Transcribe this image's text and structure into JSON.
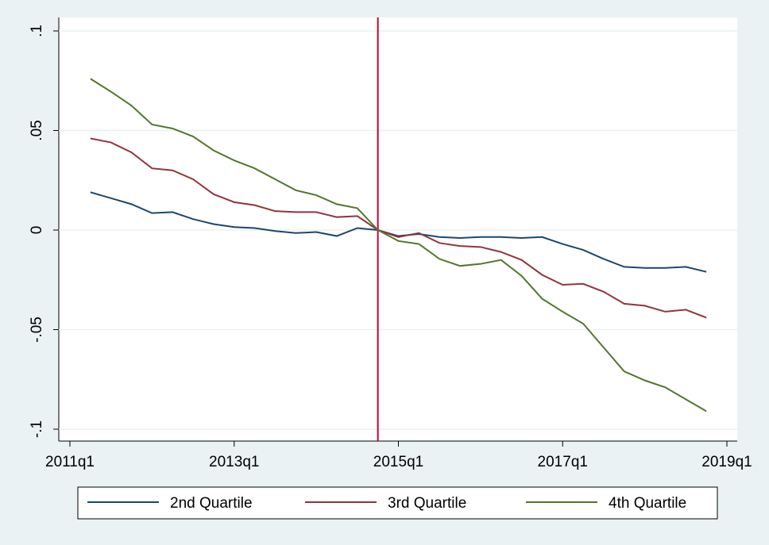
{
  "chart_data": {
    "type": "line",
    "x": [
      "2011q2",
      "2011q3",
      "2011q4",
      "2012q1",
      "2012q2",
      "2012q3",
      "2012q4",
      "2013q1",
      "2013q2",
      "2013q3",
      "2013q4",
      "2014q1",
      "2014q2",
      "2014q3",
      "2014q4",
      "2015q1",
      "2015q2",
      "2015q3",
      "2015q4",
      "2016q1",
      "2016q2",
      "2016q3",
      "2016q4",
      "2017q1",
      "2017q2",
      "2017q3",
      "2017q4",
      "2018q1",
      "2018q2",
      "2018q3",
      "2018q4"
    ],
    "series": [
      {
        "name": "2nd Quartile",
        "color": "#1a476f",
        "values": [
          0.019,
          0.016,
          0.013,
          0.0085,
          0.009,
          0.0055,
          0.003,
          0.0015,
          0.001,
          -0.0005,
          -0.0015,
          -0.001,
          -0.003,
          0.001,
          0,
          -0.003,
          -0.002,
          -0.0035,
          -0.004,
          -0.0035,
          -0.0035,
          -0.004,
          -0.0035,
          -0.007,
          -0.01,
          -0.0145,
          -0.0185,
          -0.019,
          -0.019,
          -0.0185,
          -0.021
        ]
      },
      {
        "name": "3rd Quartile",
        "color": "#90353b",
        "values": [
          0.046,
          0.044,
          0.039,
          0.031,
          0.03,
          0.0255,
          0.018,
          0.014,
          0.0125,
          0.0095,
          0.009,
          0.009,
          0.0065,
          0.007,
          0,
          -0.0035,
          -0.0015,
          -0.0065,
          -0.008,
          -0.0085,
          -0.011,
          -0.015,
          -0.0225,
          -0.0275,
          -0.027,
          -0.031,
          -0.037,
          -0.038,
          -0.041,
          -0.04,
          -0.044
        ]
      },
      {
        "name": "4th Quartile",
        "color": "#55752f",
        "values": [
          0.076,
          0.0695,
          0.0625,
          0.053,
          0.051,
          0.047,
          0.04,
          0.035,
          0.031,
          0.0255,
          0.02,
          0.0175,
          0.013,
          0.011,
          0,
          -0.0055,
          -0.007,
          -0.0145,
          -0.018,
          -0.017,
          -0.015,
          -0.023,
          -0.0345,
          -0.041,
          -0.047,
          -0.059,
          -0.071,
          -0.0755,
          -0.079,
          -0.085,
          -0.091
        ]
      }
    ],
    "xlim": [
      "2011q1",
      "2019q1"
    ],
    "xticks": [
      "2011q1",
      "2013q1",
      "2015q1",
      "2017q1",
      "2019q1"
    ],
    "ylim": [
      -0.1,
      0.1
    ],
    "yticks": [
      {
        "value": -0.1,
        "label": "-.1"
      },
      {
        "value": -0.05,
        "label": "-.05"
      },
      0,
      {
        "value": 0.05,
        "label": ".05"
      },
      {
        "value": 0.1,
        "label": ".1"
      }
    ],
    "grid": true,
    "vline": {
      "x": "2014q4",
      "color": "#c10534"
    },
    "legend": "bottom"
  }
}
